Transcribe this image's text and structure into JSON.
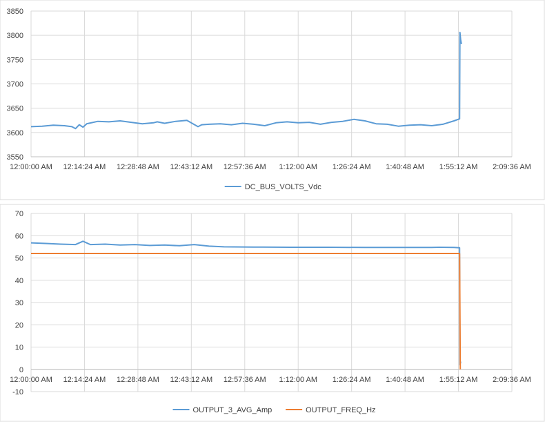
{
  "chart_data": [
    {
      "type": "line",
      "title": "",
      "xlabel": "",
      "ylabel": "",
      "ylim": [
        3550,
        3850
      ],
      "yticks": [
        3550,
        3600,
        3650,
        3700,
        3750,
        3800,
        3850
      ],
      "xlim": [
        "12:00:00 AM",
        "2:09:36 AM"
      ],
      "xtick_labels": [
        "12:00:00 AM",
        "12:14:24 AM",
        "12:28:48 AM",
        "12:43:12 AM",
        "12:57:36 AM",
        "1:12:00 AM",
        "1:26:24 AM",
        "1:40:48 AM",
        "1:55:12 AM",
        "2:09:36 AM"
      ],
      "grid": true,
      "legend_position": "bottom",
      "series": [
        {
          "name": "DC_BUS_VOLTS_Vdc",
          "color": "#5b9bd5",
          "x": [
            "12:00:00 AM",
            "12:03:00 AM",
            "12:06:00 AM",
            "12:09:00 AM",
            "12:11:00 AM",
            "12:12:00 AM",
            "12:13:00 AM",
            "12:14:00 AM",
            "12:15:00 AM",
            "12:18:00 AM",
            "12:21:00 AM",
            "12:24:00 AM",
            "12:27:00 AM",
            "12:30:00 AM",
            "12:33:00 AM",
            "12:34:00 AM",
            "12:36:00 AM",
            "12:39:00 AM",
            "12:42:00 AM",
            "12:45:00 AM",
            "12:46:00 AM",
            "12:48:00 AM",
            "12:51:00 AM",
            "12:54:00 AM",
            "12:57:00 AM",
            "1:00:00 AM",
            "1:03:00 AM",
            "1:06:00 AM",
            "1:09:00 AM",
            "1:12:00 AM",
            "1:15:00 AM",
            "1:18:00 AM",
            "1:21:00 AM",
            "1:24:00 AM",
            "1:27:00 AM",
            "1:30:00 AM",
            "1:33:00 AM",
            "1:36:00 AM",
            "1:39:00 AM",
            "1:42:00 AM",
            "1:45:00 AM",
            "1:48:00 AM",
            "1:51:00 AM",
            "1:54:00 AM",
            "1:55:30 AM",
            "1:55:36 AM",
            "1:55:48 AM",
            "1:56:00 AM"
          ],
          "values": [
            3612,
            3613,
            3615,
            3614,
            3612,
            3608,
            3616,
            3611,
            3618,
            3623,
            3622,
            3624,
            3621,
            3618,
            3620,
            3622,
            3619,
            3623,
            3625,
            3612,
            3616,
            3617,
            3618,
            3616,
            3619,
            3617,
            3614,
            3620,
            3622,
            3620,
            3621,
            3617,
            3621,
            3623,
            3627,
            3624,
            3618,
            3617,
            3613,
            3615,
            3616,
            3614,
            3617,
            3624,
            3628,
            3806,
            3790,
            3782
          ]
        }
      ]
    },
    {
      "type": "line",
      "title": "",
      "xlabel": "",
      "ylabel": "",
      "ylim": [
        -10,
        70
      ],
      "yticks": [
        -10,
        0,
        10,
        20,
        30,
        40,
        50,
        60,
        70
      ],
      "xlim": [
        "12:00:00 AM",
        "2:09:36 AM"
      ],
      "xtick_labels": [
        "12:00:00 AM",
        "12:14:24 AM",
        "12:28:48 AM",
        "12:43:12 AM",
        "12:57:36 AM",
        "1:12:00 AM",
        "1:26:24 AM",
        "1:40:48 AM",
        "1:55:12 AM",
        "2:09:36 AM"
      ],
      "grid": true,
      "legend_position": "bottom",
      "series": [
        {
          "name": "OUTPUT_3_AVG_Amp",
          "color": "#5b9bd5",
          "x": [
            "12:00:00 AM",
            "12:04:00 AM",
            "12:08:00 AM",
            "12:12:00 AM",
            "12:14:00 AM",
            "12:16:00 AM",
            "12:20:00 AM",
            "12:24:00 AM",
            "12:28:00 AM",
            "12:32:00 AM",
            "12:36:00 AM",
            "12:40:00 AM",
            "12:44:00 AM",
            "12:48:00 AM",
            "12:52:00 AM",
            "1:00:00 AM",
            "1:10:00 AM",
            "1:20:00 AM",
            "1:30:00 AM",
            "1:40:00 AM",
            "1:48:00 AM",
            "1:50:00 AM",
            "1:54:00 AM",
            "1:55:30 AM",
            "1:55:36 AM",
            "1:55:48 AM"
          ],
          "values": [
            56.8,
            56.5,
            56.2,
            56.0,
            57.5,
            56.0,
            56.2,
            55.8,
            56.0,
            55.6,
            55.8,
            55.5,
            56.0,
            55.3,
            55.0,
            54.9,
            54.8,
            54.8,
            54.7,
            54.7,
            54.7,
            54.8,
            54.7,
            54.6,
            2,
            3.5
          ]
        },
        {
          "name": "OUTPUT_FREQ_Hz",
          "color": "#ed7d31",
          "x": [
            "12:00:00 AM",
            "1:55:30 AM",
            "1:55:42 AM"
          ],
          "values": [
            52,
            52,
            0
          ]
        }
      ]
    }
  ]
}
